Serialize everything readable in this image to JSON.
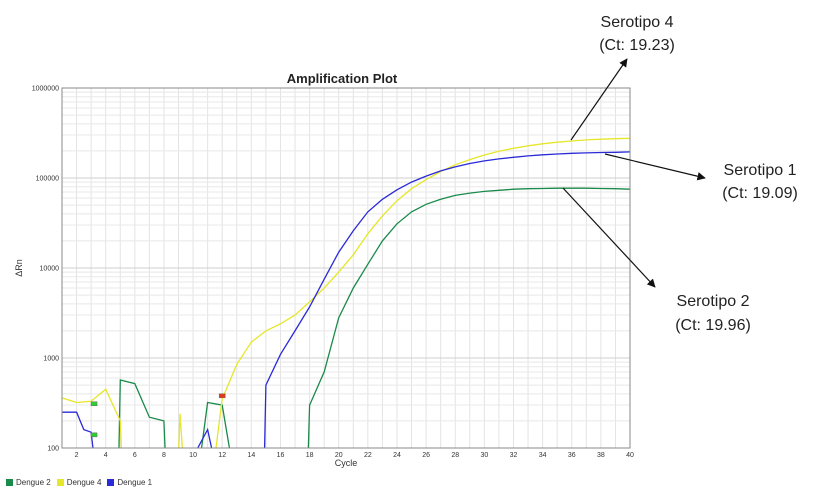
{
  "chart_data": {
    "type": "line",
    "title": "Amplification Plot",
    "xlabel": "Cycle",
    "ylabel": "ΔRn",
    "yscale": "log",
    "xlim": [
      1,
      40
    ],
    "ylim": [
      100,
      1000000
    ],
    "grid": true,
    "legend_position": "bottom-left",
    "x_ticks": [
      2,
      4,
      6,
      8,
      10,
      12,
      14,
      16,
      18,
      20,
      22,
      24,
      26,
      28,
      30,
      32,
      34,
      36,
      38,
      40
    ],
    "y_ticks": [
      {
        "value": 100,
        "label": "100"
      },
      {
        "value": 1000,
        "label": "1000"
      },
      {
        "value": 10000,
        "label": "10000"
      },
      {
        "value": 100000,
        "label": "100000"
      },
      {
        "value": 1000000,
        "label": "1000000"
      }
    ],
    "series": [
      {
        "name": "Dengue 2",
        "color": "#1a8a4a",
        "points": [
          [
            4.9,
            80
          ],
          [
            5,
            570
          ],
          [
            6,
            520
          ],
          [
            7,
            220
          ],
          [
            8,
            200
          ],
          [
            8.1,
            80
          ],
          [
            10.5,
            80
          ],
          [
            11,
            320
          ],
          [
            12,
            300
          ],
          [
            12.6,
            80
          ],
          [
            17.9,
            80
          ],
          [
            18,
            300
          ],
          [
            19,
            700
          ],
          [
            20,
            2800
          ],
          [
            21,
            6000
          ],
          [
            22,
            11000
          ],
          [
            23,
            20000
          ],
          [
            24,
            31000
          ],
          [
            25,
            42000
          ],
          [
            26,
            51000
          ],
          [
            27,
            58000
          ],
          [
            28,
            64000
          ],
          [
            29,
            68000
          ],
          [
            30,
            71000
          ],
          [
            31,
            73000
          ],
          [
            32,
            75000
          ],
          [
            33,
            76000
          ],
          [
            34,
            76500
          ],
          [
            35,
            77000
          ],
          [
            36,
            77000
          ],
          [
            37,
            77000
          ],
          [
            38,
            76500
          ],
          [
            39,
            76000
          ],
          [
            40,
            75000
          ]
        ]
      },
      {
        "name": "Dengue 4",
        "color": "#e6e62a",
        "points": [
          [
            1,
            360
          ],
          [
            2,
            320
          ],
          [
            3,
            330
          ],
          [
            4,
            450
          ],
          [
            4.5,
            300
          ],
          [
            5,
            200
          ],
          [
            5.1,
            80
          ],
          [
            9,
            80
          ],
          [
            9.1,
            240
          ],
          [
            9.3,
            80
          ],
          [
            11.5,
            80
          ],
          [
            12,
            350
          ],
          [
            13,
            850
          ],
          [
            14,
            1500
          ],
          [
            15,
            2000
          ],
          [
            16,
            2400
          ],
          [
            17,
            3000
          ],
          [
            18,
            4200
          ],
          [
            19,
            6000
          ],
          [
            20,
            9000
          ],
          [
            21,
            14000
          ],
          [
            22,
            24000
          ],
          [
            23,
            38000
          ],
          [
            24,
            56000
          ],
          [
            25,
            76000
          ],
          [
            26,
            96000
          ],
          [
            27,
            118000
          ],
          [
            28,
            140000
          ],
          [
            29,
            160000
          ],
          [
            30,
            180000
          ],
          [
            31,
            198000
          ],
          [
            32,
            214000
          ],
          [
            33,
            228000
          ],
          [
            34,
            240000
          ],
          [
            35,
            250000
          ],
          [
            36,
            258000
          ],
          [
            37,
            265000
          ],
          [
            38,
            270000
          ],
          [
            39,
            273000
          ],
          [
            40,
            276000
          ]
        ]
      },
      {
        "name": "Dengue 1",
        "color": "#2a2ad8",
        "points": [
          [
            1,
            250
          ],
          [
            2,
            250
          ],
          [
            2.5,
            160
          ],
          [
            3,
            150
          ],
          [
            3.2,
            80
          ],
          [
            10,
            80
          ],
          [
            11,
            160
          ],
          [
            11.4,
            80
          ],
          [
            14.9,
            80
          ],
          [
            15,
            500
          ],
          [
            16,
            1100
          ],
          [
            17,
            2000
          ],
          [
            18,
            3700
          ],
          [
            19,
            7500
          ],
          [
            20,
            15000
          ],
          [
            21,
            26000
          ],
          [
            22,
            42000
          ],
          [
            23,
            58000
          ],
          [
            24,
            74000
          ],
          [
            25,
            90000
          ],
          [
            26,
            105000
          ],
          [
            27,
            120000
          ],
          [
            28,
            133000
          ],
          [
            29,
            145000
          ],
          [
            30,
            155000
          ],
          [
            31,
            163000
          ],
          [
            32,
            170000
          ],
          [
            33,
            176000
          ],
          [
            34,
            181000
          ],
          [
            35,
            185000
          ],
          [
            36,
            188000
          ],
          [
            37,
            190000
          ],
          [
            38,
            192000
          ],
          [
            39,
            193000
          ],
          [
            40,
            195000
          ]
        ]
      }
    ],
    "threshold_markers": [
      {
        "x": 3.2,
        "y": 310,
        "color": "#2fcf2f"
      },
      {
        "x": 3.2,
        "y": 140,
        "color": "#2fcf2f"
      },
      {
        "x": 12,
        "y": 380,
        "color": "#e03a1a"
      }
    ],
    "annotations": [
      {
        "line1": "Serotipo 4",
        "line2": "(Ct: 19.23)"
      },
      {
        "line1": "Serotipo 1",
        "line2": "(Ct: 19.09)"
      },
      {
        "line1": "Serotipo 2",
        "line2": "(Ct: 19.96)"
      }
    ]
  }
}
